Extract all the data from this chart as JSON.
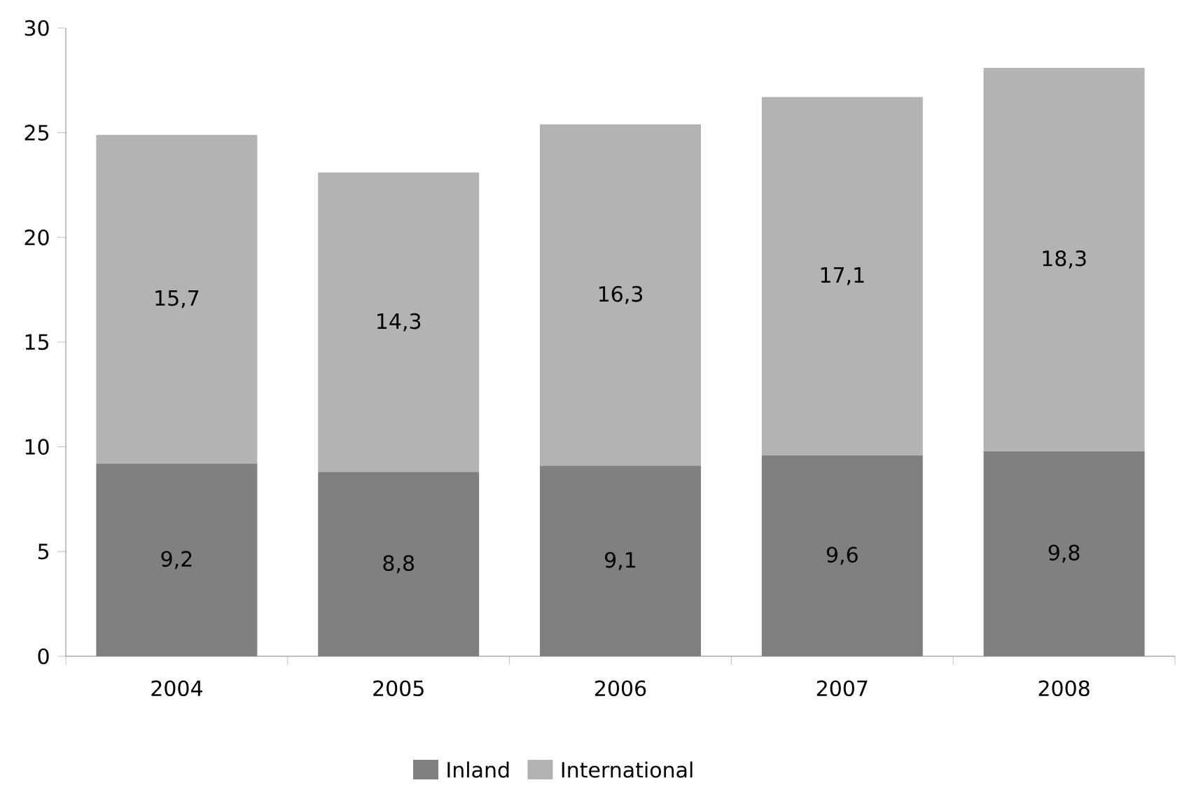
{
  "chart_data": {
    "type": "bar",
    "stacked": true,
    "categories": [
      "2004",
      "2005",
      "2006",
      "2007",
      "2008"
    ],
    "series": [
      {
        "name": "Inland",
        "color": "#808080",
        "values": [
          9.2,
          8.8,
          9.1,
          9.6,
          9.8
        ],
        "value_labels": [
          "9,2",
          "8,8",
          "9,1",
          "9,6",
          "9,8"
        ]
      },
      {
        "name": "International",
        "color": "#b3b3b3",
        "values": [
          15.7,
          14.3,
          16.3,
          17.1,
          18.3
        ],
        "value_labels": [
          "15,7",
          "14,3",
          "16,3",
          "17,1",
          "18,3"
        ]
      }
    ],
    "ylim": [
      0,
      30
    ],
    "yticks": [
      0,
      5,
      10,
      15,
      20,
      25,
      30
    ],
    "grid": false,
    "legend": "bottom"
  }
}
